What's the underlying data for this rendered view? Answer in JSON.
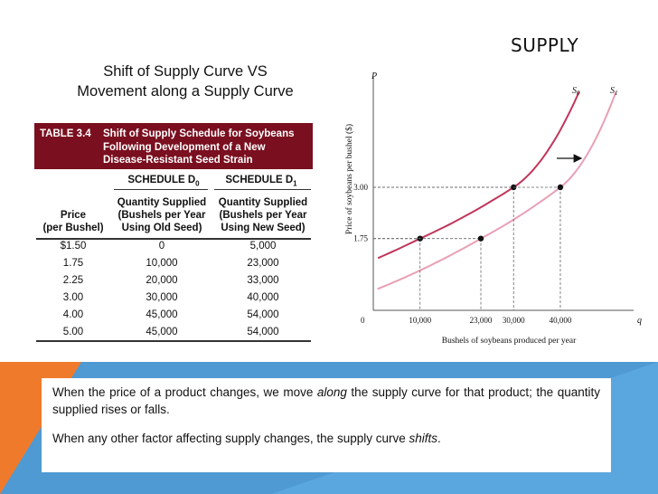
{
  "slide": {
    "title": "SUPPLY",
    "subtitle_line1": "Shift of Supply Curve VS",
    "subtitle_line2": "Movement along a Supply Curve"
  },
  "table": {
    "caption_prefix": "TABLE 3.4",
    "caption_line1": "Shift of Supply Schedule for Soybeans",
    "caption_line2": "Following Development of a New",
    "caption_line3": "Disease-Resistant Seed Strain",
    "schedule_d0": "SCHEDULE D",
    "schedule_d0_sub": "0",
    "schedule_d1": "SCHEDULE D",
    "schedule_d1_sub": "1",
    "col_price_1": "Price",
    "col_price_2": "(per Bushel)",
    "col_old_1": "Quantity Supplied",
    "col_old_2": "(Bushels per Year",
    "col_old_3": "Using Old Seed)",
    "col_new_1": "Quantity Supplied",
    "col_new_2": "(Bushels per Year",
    "col_new_3": "Using New Seed)",
    "rows": [
      [
        "$1.50",
        "0",
        "5,000"
      ],
      [
        "1.75",
        "10,000",
        "23,000"
      ],
      [
        "2.25",
        "20,000",
        "33,000"
      ],
      [
        "3.00",
        "30,000",
        "40,000"
      ],
      [
        "4.00",
        "45,000",
        "54,000"
      ],
      [
        "5.00",
        "45,000",
        "54,000"
      ]
    ]
  },
  "chart_data": {
    "type": "line",
    "xlabel": "Bushels of soybeans produced per year",
    "ylabel": "Price of soybeans per bushel ($)",
    "x_axis_symbol": "q",
    "y_axis_symbol": "P",
    "origin_label": "0",
    "x_ticks": [
      "10,000",
      "23,000",
      "30,000",
      "40,000"
    ],
    "y_ticks": [
      "1.75",
      "3.00"
    ],
    "series": [
      {
        "name": "S0",
        "color": "#c0355a",
        "points": [
          [
            10000,
            1.75
          ],
          [
            30000,
            3.0
          ]
        ]
      },
      {
        "name": "S1",
        "color": "#e8a0b4",
        "points": [
          [
            23000,
            1.75
          ],
          [
            40000,
            3.0
          ]
        ]
      }
    ],
    "shift_arrow": "right",
    "legend_s0": "S",
    "legend_s0_sub": "0",
    "legend_s1": "S",
    "legend_s1_sub": "1"
  },
  "textbox": {
    "p1_a": "When the price of a product changes, we move ",
    "p1_em": "along",
    "p1_b": " the supply curve for that product; the quantity supplied rises or falls.",
    "p2_a": "When any other factor affecting supply changes, the supply curve ",
    "p2_em": "shifts",
    "p2_b": "."
  }
}
